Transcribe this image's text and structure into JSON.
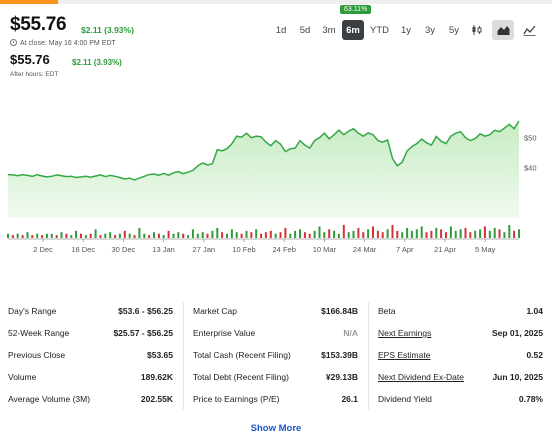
{
  "quote": {
    "price": "$55.76",
    "change": "$2.11 (3.93%)",
    "close_label": "At close: May 16 4:00 PM EDT",
    "after_hours_price": "$55.76",
    "after_hours_change": "$2.11 (3.93%)",
    "after_hours_label": "After hours: EDT",
    "progress_fraction": 0.105
  },
  "ranges": {
    "tooltip": "63.11%",
    "items": [
      "1d",
      "5d",
      "3m",
      "6m",
      "YTD",
      "1y",
      "3y",
      "5y"
    ],
    "active": "6m",
    "chart_types": [
      "candle-icon",
      "mountain-icon",
      "line-icon"
    ],
    "active_chart_type": "mountain-icon"
  },
  "colors": {
    "up": "#2e9c3a",
    "down": "#d6303b",
    "area_fill": "#c4ebc0",
    "line": "#34a844",
    "accent": "#f7931e",
    "link": "#1a56c7"
  },
  "chart_data": {
    "type": "area",
    "x_ticks": [
      "2 Dec",
      "16 Dec",
      "30 Dec",
      "13 Jan",
      "27 Jan",
      "10 Feb",
      "24 Feb",
      "10 Mar",
      "24 Mar",
      "7 Apr",
      "21 Apr",
      "5 May"
    ],
    "y_ticks": [
      "$50",
      "$40"
    ],
    "y_tick_values": [
      50,
      40
    ],
    "ylim": [
      23,
      64
    ],
    "close": [
      37.6,
      37.5,
      37.2,
      37.6,
      37.3,
      37.0,
      37.6,
      37.1,
      36.8,
      37.0,
      37.5,
      37.2,
      36.9,
      37.0,
      36.6,
      36.8,
      37.0,
      36.7,
      37.1,
      37.5,
      36.9,
      37.3,
      37.0,
      36.6,
      36.1,
      36.4,
      35.8,
      36.4,
      37.0,
      37.6,
      37.8,
      37.4,
      38.0,
      37.4,
      38.2,
      38.6,
      37.9,
      38.4,
      39.0,
      40.5,
      41.5,
      40.8,
      41.2,
      46.0,
      45.6,
      46.3,
      48.0,
      50.5,
      50.2,
      51.5,
      50.0,
      50.5,
      50.3,
      48.5,
      47.3,
      49.0,
      47.8,
      45.3,
      46.3,
      46.5,
      49.0,
      47.5,
      46.5,
      49.0,
      50.0,
      51.5,
      49.6,
      51.0,
      52.5,
      51.0,
      52.2,
      53.0,
      51.5,
      50.5,
      51.6,
      51.0,
      49.0,
      48.5,
      49.2,
      43.0,
      40.5,
      41.8,
      45.5,
      47.0,
      48.0,
      49.5,
      48.3,
      47.5,
      50.4,
      48.8,
      48.0,
      50.5,
      51.5,
      52.0,
      50.0,
      49.0,
      49.7,
      51.3,
      50.5,
      51.0,
      52.5,
      52.0,
      53.2,
      54.5,
      53.0,
      55.6
    ],
    "volume": [
      3,
      2,
      3,
      2,
      4,
      2,
      3,
      2,
      3,
      3,
      2,
      4,
      3,
      2,
      5,
      3,
      2,
      3,
      6,
      2,
      3,
      4,
      2,
      3,
      5,
      3,
      2,
      7,
      3,
      2,
      4,
      3,
      2,
      5,
      3,
      4,
      3,
      2,
      6,
      3,
      4,
      3,
      5,
      7,
      4,
      3,
      6,
      4,
      3,
      5,
      4,
      6,
      3,
      4,
      5,
      3,
      4,
      7,
      3,
      5,
      6,
      4,
      3,
      5,
      8,
      4,
      6,
      5,
      3,
      9,
      4,
      5,
      7,
      4,
      6,
      8,
      5,
      4,
      6,
      9,
      5,
      4,
      7,
      5,
      6,
      8,
      4,
      5,
      7,
      6,
      4,
      8,
      5,
      6,
      7,
      4,
      5,
      6,
      8,
      5,
      7,
      6,
      4,
      9,
      5,
      6
    ],
    "volume_up": [
      1,
      0,
      1,
      0,
      1,
      0,
      1,
      0,
      1,
      1,
      0,
      1,
      0,
      1,
      1,
      0,
      1,
      0,
      1,
      0,
      1,
      1,
      0,
      1,
      0,
      1,
      0,
      1,
      1,
      0,
      1,
      0,
      1,
      0,
      1,
      1,
      0,
      1,
      1,
      1,
      1,
      0,
      1,
      1,
      0,
      1,
      1,
      1,
      0,
      1,
      0,
      1,
      0,
      0,
      0,
      1,
      0,
      0,
      1,
      1,
      1,
      0,
      0,
      1,
      1,
      1,
      0,
      1,
      1,
      0,
      1,
      1,
      0,
      0,
      1,
      0,
      0,
      0,
      1,
      0,
      0,
      1,
      1,
      1,
      1,
      1,
      0,
      0,
      1,
      0,
      0,
      1,
      1,
      1,
      0,
      0,
      1,
      1,
      0,
      1,
      1,
      0,
      1,
      1,
      0,
      1
    ]
  },
  "stats": {
    "col1": [
      {
        "label": "Day's Range",
        "value": "$53.6 - $56.25"
      },
      {
        "label": "52-Week Range",
        "value": "$25.57 - $56.25"
      },
      {
        "label": "Previous Close",
        "value": "$53.65"
      },
      {
        "label": "Volume",
        "value": "189.62K"
      },
      {
        "label": "Average Volume (3M)",
        "value": "202.55K"
      }
    ],
    "col2": [
      {
        "label": "Market Cap",
        "value": "$166.84B"
      },
      {
        "label": "Enterprise Value",
        "value": "N/A"
      },
      {
        "label": "Total Cash (Recent Filing)",
        "value": "$153.39B"
      },
      {
        "label": "Total Debt (Recent Filing)",
        "value": "¥29.13B"
      },
      {
        "label": "Price to Earnings (P/E)",
        "value": "26.1"
      }
    ],
    "col3": [
      {
        "label": "Beta",
        "value": "1.04"
      },
      {
        "label": "Next Earnings",
        "value": "Sep 01, 2025"
      },
      {
        "label": "EPS Estimate",
        "value": "0.52"
      },
      {
        "label": "Next Dividend Ex-Date",
        "value": "Jun 10, 2025"
      },
      {
        "label": "Dividend Yield",
        "value": "0.78%"
      }
    ]
  },
  "show_more": "Show More"
}
